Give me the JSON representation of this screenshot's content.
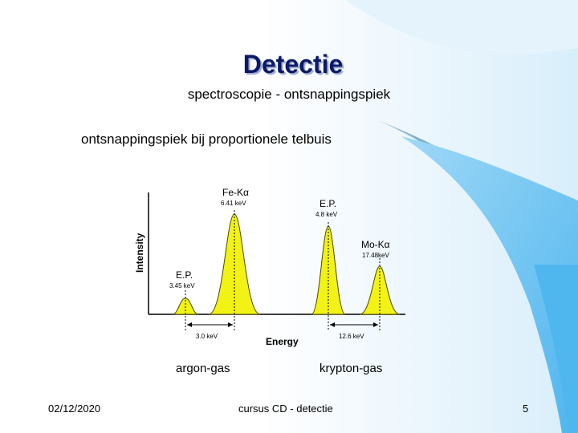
{
  "slide": {
    "title": "Detectie",
    "subtitle": "spectroscopie - ontsnappingspiek",
    "bullet": "ontsnappingspiek bij proportionele telbuis"
  },
  "figure": {
    "ylabel": "Intensity",
    "xlabel": "Energy",
    "labels": {
      "fe_peak": "Fe-Kα",
      "fe_energy": "6.41 keV",
      "ep_left": "E.P.",
      "ep_left_energy": "3.45 keV",
      "ep_right": "E.P.",
      "ep_right_energy": "4.8 keV",
      "mo_peak": "Mo-Kα",
      "mo_energy": "17.48keV",
      "gap_left": "3.0 keV",
      "gap_right": "12.6 keV"
    },
    "colors": {
      "peak_fill": "#f2f215",
      "peak_stroke": "#4a4a00"
    }
  },
  "captions": {
    "left": "argon-gas",
    "right": "krypton-gas"
  },
  "footer": {
    "date": "02/12/2020",
    "center": "cursus CD - detectie",
    "page": "5"
  },
  "theme": {
    "wave_light": "#c9e7fb",
    "wave_mid": "#6fc6f3",
    "wave_dark": "#1a6fa5"
  }
}
